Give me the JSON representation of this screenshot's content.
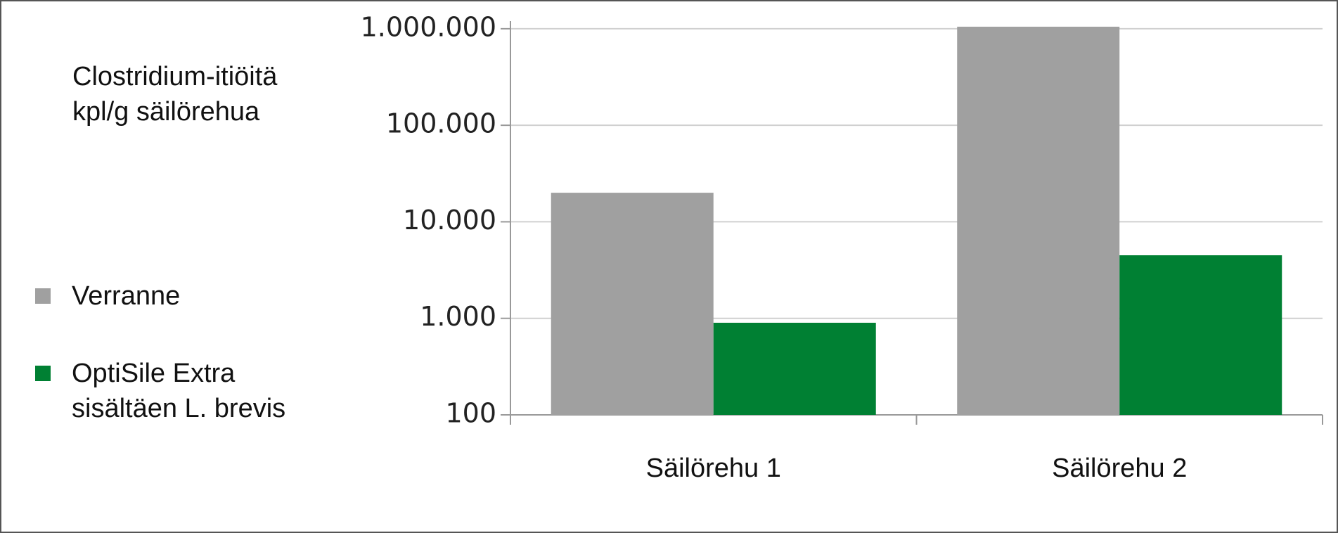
{
  "chart_data": {
    "type": "bar",
    "ylabel": "Clostridium-itiöitä kpl/g säilörehua",
    "categories": [
      "Säilörehu 1",
      "Säilörehu 2"
    ],
    "series": [
      {
        "name": "Verranne",
        "color": "#a0a0a0",
        "values": [
          20000,
          1050000
        ]
      },
      {
        "name": "OptiSile Extra sisältäen L. brevis",
        "color": "#008033",
        "values": [
          900,
          4500
        ]
      }
    ],
    "log_scale": true,
    "ylim": [
      100,
      1200000
    ],
    "yticks": [
      100,
      {
        "value": 1000,
        "label": "1.000"
      },
      {
        "value": 10000,
        "label": "10.000"
      },
      {
        "value": 100000,
        "label": "100.000"
      },
      {
        "value": 1000000,
        "label": "1.000.000"
      }
    ],
    "grid": true,
    "legend": "left"
  }
}
